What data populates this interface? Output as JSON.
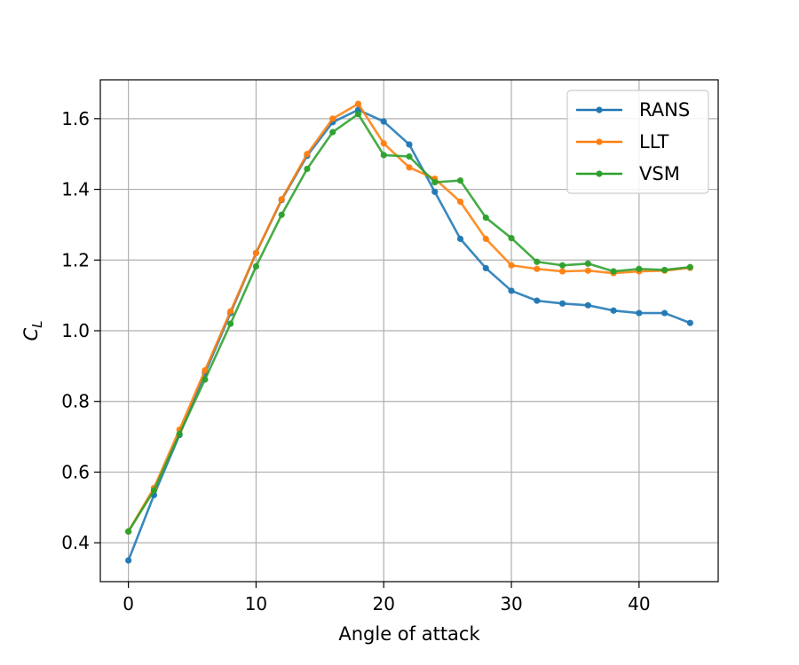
{
  "chart_data": {
    "type": "line",
    "title": "",
    "xlabel": "Angle of attack",
    "ylabel_main": "C",
    "ylabel_sub": "L",
    "xlim": [
      -2.2,
      46.2
    ],
    "ylim": [
      0.29,
      1.71
    ],
    "xticks": [
      0,
      10,
      20,
      30,
      40
    ],
    "yticks": [
      0.4,
      0.6,
      0.8,
      1.0,
      1.2,
      1.4,
      1.6
    ],
    "xtick_labels": [
      "0",
      "10",
      "20",
      "30",
      "40"
    ],
    "ytick_labels": [
      "0.4",
      "0.6",
      "0.8",
      "1.0",
      "1.2",
      "1.4",
      "1.6"
    ],
    "grid": true,
    "legend_position": "top-right",
    "x": [
      0,
      2,
      4,
      6,
      8,
      10,
      12,
      14,
      16,
      18,
      20,
      22,
      24,
      26,
      28,
      30,
      32,
      34,
      36,
      38,
      40,
      42,
      44
    ],
    "series": [
      {
        "name": "RANS",
        "color": "#1f77b4",
        "values": [
          0.35,
          0.535,
          0.705,
          0.88,
          1.05,
          1.22,
          1.37,
          1.495,
          1.59,
          1.625,
          1.592,
          1.527,
          1.393,
          1.26,
          1.177,
          1.113,
          1.085,
          1.077,
          1.072,
          1.057,
          1.05,
          1.05,
          1.022
        ]
      },
      {
        "name": "LLT",
        "color": "#ff7f0e",
        "values": [
          0.432,
          0.555,
          0.72,
          0.888,
          1.055,
          1.22,
          1.372,
          1.5,
          1.6,
          1.642,
          1.53,
          1.462,
          1.43,
          1.365,
          1.26,
          1.185,
          1.175,
          1.168,
          1.17,
          1.163,
          1.168,
          1.17,
          1.178
        ]
      },
      {
        "name": "VSM",
        "color": "#2ca02c",
        "values": [
          0.432,
          0.548,
          0.708,
          0.862,
          1.02,
          1.182,
          1.328,
          1.458,
          1.562,
          1.613,
          1.497,
          1.493,
          1.42,
          1.425,
          1.32,
          1.262,
          1.195,
          1.185,
          1.19,
          1.168,
          1.175,
          1.172,
          1.18
        ]
      }
    ]
  }
}
